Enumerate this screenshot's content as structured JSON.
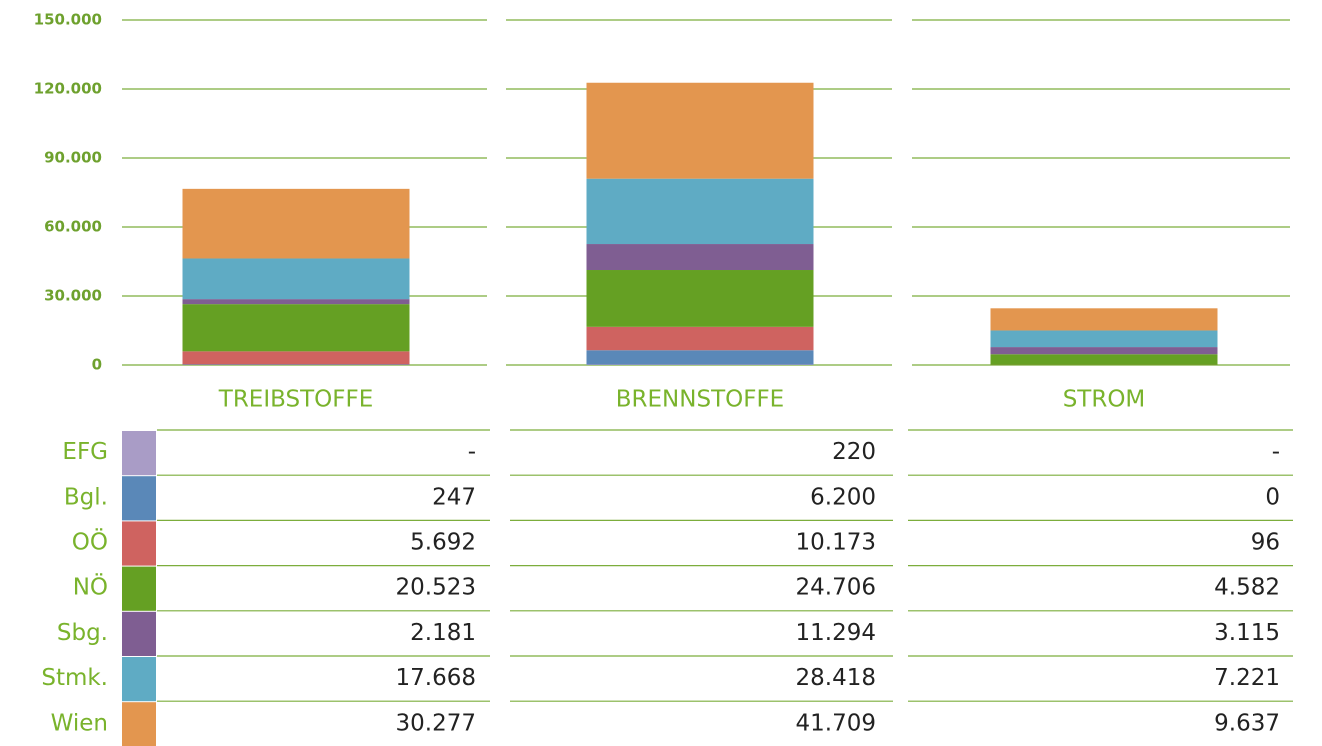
{
  "chart_data": {
    "type": "bar",
    "stacked": true,
    "categories": [
      "TREIBSTOFFE",
      "BRENNSTOFFE",
      "STROM"
    ],
    "ylim": [
      0,
      150000
    ],
    "yticks": [
      0,
      {
        "value": 30000,
        "label": "30.000"
      },
      {
        "value": 60000,
        "label": "60.000"
      },
      {
        "value": 90000,
        "label": "90.000"
      },
      {
        "value": 120000,
        "label": "120.000"
      },
      {
        "value": 150000,
        "label": "150.000"
      }
    ],
    "grid": true,
    "series": [
      {
        "name": "EFG",
        "color": "#a99cc6",
        "values": [
          null,
          220,
          null
        ],
        "value_labels": [
          "-",
          "220",
          "-"
        ]
      },
      {
        "name": "Bgl.",
        "color": "#5a88b8",
        "values": [
          247,
          6200,
          0
        ],
        "value_labels": [
          "247",
          "6.200",
          "0"
        ]
      },
      {
        "name": "OÖ",
        "color": "#cf6360",
        "values": [
          5692,
          10173,
          96
        ],
        "value_labels": [
          "5.692",
          "10.173",
          "96"
        ]
      },
      {
        "name": "NÖ",
        "color": "#65a023",
        "values": [
          20523,
          24706,
          4582
        ],
        "value_labels": [
          "20.523",
          "24.706",
          "4.582"
        ]
      },
      {
        "name": "Sbg.",
        "color": "#7f5e92",
        "values": [
          2181,
          11294,
          3115
        ],
        "value_labels": [
          "2.181",
          "11.294",
          "3.115"
        ]
      },
      {
        "name": "Stmk.",
        "color": "#5fabc4",
        "values": [
          17668,
          28418,
          7221
        ],
        "value_labels": [
          "17.668",
          "28.418",
          "7.221"
        ]
      },
      {
        "name": "Wien",
        "color": "#e3964f",
        "values": [
          30277,
          41709,
          9637
        ],
        "value_labels": [
          "30.277",
          "41.709",
          "9.637"
        ]
      }
    ]
  }
}
